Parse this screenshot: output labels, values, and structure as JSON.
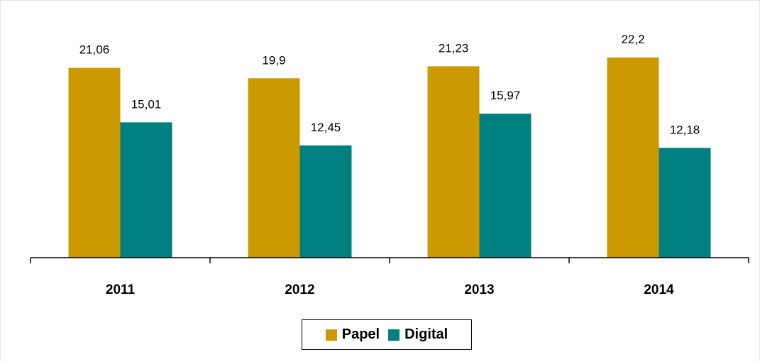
{
  "chart_data": {
    "type": "bar",
    "categories": [
      "2011",
      "2012",
      "2013",
      "2014"
    ],
    "series": [
      {
        "name": "Papel",
        "color": "#CC9900",
        "values": [
          21.06,
          19.9,
          21.23,
          22.2
        ],
        "labels": [
          "21,06",
          "19,9",
          "21,23",
          "22,2"
        ]
      },
      {
        "name": "Digital",
        "color": "#008080",
        "values": [
          15.01,
          12.45,
          15.97,
          12.18
        ],
        "labels": [
          "15,01",
          "12,45",
          "15,97",
          "12,18"
        ]
      }
    ],
    "ylim": [
      0,
      24
    ],
    "grid": false,
    "legend_position": "bottom-center"
  }
}
